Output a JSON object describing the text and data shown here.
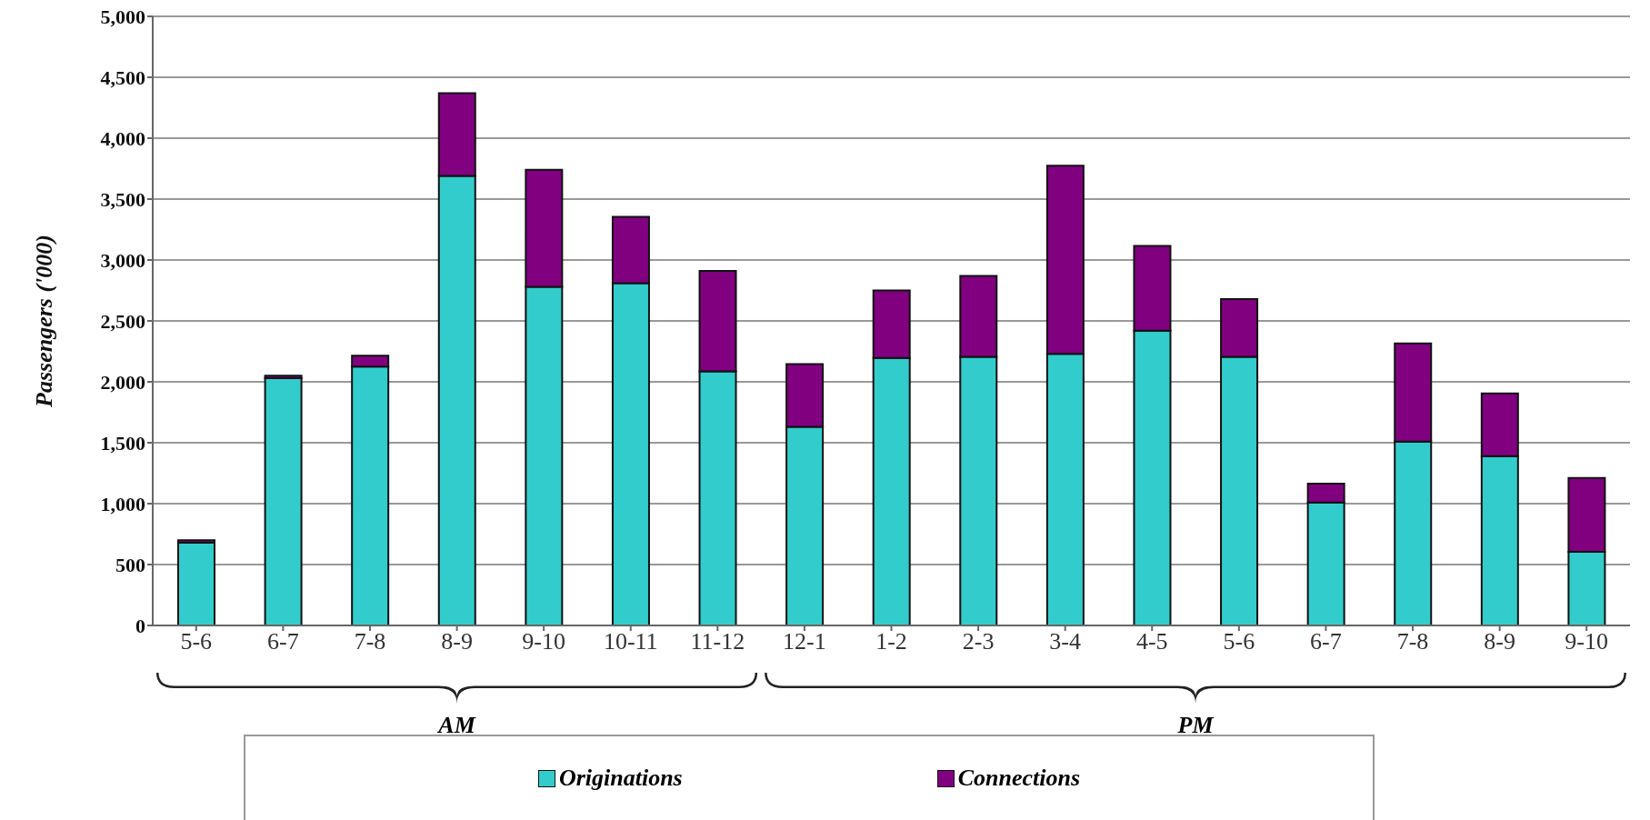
{
  "chart_data": {
    "type": "bar",
    "stacked": true,
    "ylabel": "Passengers ('000)",
    "categories": [
      "5-6",
      "6-7",
      "7-8",
      "8-9",
      "9-10",
      "10-11",
      "11-12",
      "12-1",
      "1-2",
      "2-3",
      "3-4",
      "4-5",
      "5-6",
      "6-7",
      "7-8",
      "8-9",
      "9-10"
    ],
    "series": [
      {
        "name": "Originations",
        "color": "#33cccc",
        "values": [
          680,
          2030,
          2125,
          3690,
          2780,
          2810,
          2085,
          1630,
          2195,
          2205,
          2230,
          2420,
          2205,
          1010,
          1510,
          1390,
          605
        ]
      },
      {
        "name": "Connections",
        "color": "#800080",
        "values": [
          20,
          20,
          90,
          680,
          960,
          545,
          825,
          515,
          555,
          665,
          1545,
          695,
          475,
          155,
          805,
          515,
          605
        ]
      }
    ],
    "ylim": [
      0,
      5000
    ],
    "yticks": [
      0,
      500,
      {
        "value": 1000,
        "label": "1,000"
      },
      {
        "value": 1500,
        "label": "1,500"
      },
      {
        "value": 2000,
        "label": "2,000"
      },
      {
        "value": 2500,
        "label": "2,500"
      },
      {
        "value": 3000,
        "label": "3,000"
      },
      {
        "value": 3500,
        "label": "3,500"
      },
      {
        "value": 4000,
        "label": "4,000"
      },
      {
        "value": 4500,
        "label": "4,500"
      },
      {
        "value": 5000,
        "label": "5,000"
      }
    ],
    "grid": "y",
    "legend": "bottom",
    "annotations": [
      "AM",
      "PM"
    ]
  }
}
